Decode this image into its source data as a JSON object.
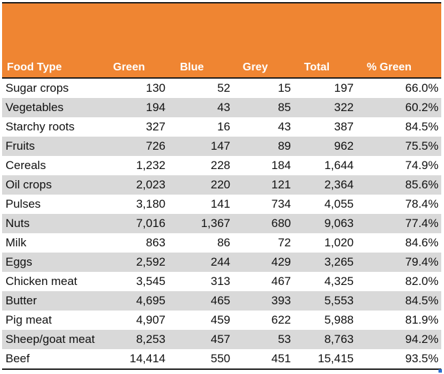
{
  "header": {
    "food_type": "Food Type",
    "green": "Green",
    "blue": "Blue",
    "grey": "Grey",
    "total": "Total",
    "pct_green": "% Green"
  },
  "colors": {
    "header_fill": "#ef8532",
    "header_text": "#ffffff",
    "row_shade": "#d9d9d9",
    "rule": "#1a1a1a"
  },
  "rows": [
    {
      "name": "Sugar crops",
      "green": "130",
      "blue": "52",
      "grey": "15",
      "total": "197",
      "pct": "66.0%"
    },
    {
      "name": "Vegetables",
      "green": "194",
      "blue": "43",
      "grey": "85",
      "total": "322",
      "pct": "60.2%"
    },
    {
      "name": "Starchy roots",
      "green": "327",
      "blue": "16",
      "grey": "43",
      "total": "387",
      "pct": "84.5%"
    },
    {
      "name": "Fruits",
      "green": "726",
      "blue": "147",
      "grey": "89",
      "total": "962",
      "pct": "75.5%"
    },
    {
      "name": "Cereals",
      "green": "1,232",
      "blue": "228",
      "grey": "184",
      "total": "1,644",
      "pct": "74.9%"
    },
    {
      "name": "Oil crops",
      "green": "2,023",
      "blue": "220",
      "grey": "121",
      "total": "2,364",
      "pct": "85.6%"
    },
    {
      "name": "Pulses",
      "green": "3,180",
      "blue": "141",
      "grey": "734",
      "total": "4,055",
      "pct": "78.4%"
    },
    {
      "name": "Nuts",
      "green": "7,016",
      "blue": "1,367",
      "grey": "680",
      "total": "9,063",
      "pct": "77.4%"
    },
    {
      "name": "Milk",
      "green": "863",
      "blue": "86",
      "grey": "72",
      "total": "1,020",
      "pct": "84.6%"
    },
    {
      "name": "Eggs",
      "green": "2,592",
      "blue": "244",
      "grey": "429",
      "total": "3,265",
      "pct": "79.4%"
    },
    {
      "name": "Chicken meat",
      "green": "3,545",
      "blue": "313",
      "grey": "467",
      "total": "4,325",
      "pct": "82.0%"
    },
    {
      "name": "Butter",
      "green": "4,695",
      "blue": "465",
      "grey": "393",
      "total": "5,553",
      "pct": "84.5%"
    },
    {
      "name": "Pig meat",
      "green": "4,907",
      "blue": "459",
      "grey": "622",
      "total": "5,988",
      "pct": "81.9%"
    },
    {
      "name": "Sheep/goat meat",
      "green": "8,253",
      "blue": "457",
      "grey": "53",
      "total": "8,763",
      "pct": "94.2%"
    },
    {
      "name": "Beef",
      "green": "14,414",
      "blue": "550",
      "grey": "451",
      "total": "15,415",
      "pct": "93.5%"
    }
  ]
}
